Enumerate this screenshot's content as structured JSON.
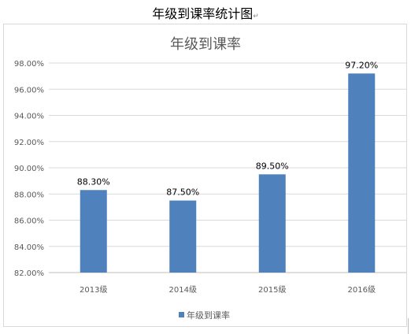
{
  "document": {
    "heading": "年级到课率统计图",
    "paragraph_mark": "↵"
  },
  "chart_data": {
    "type": "bar",
    "title": "年级到课率",
    "xlabel": "",
    "ylabel": "",
    "categories": [
      "2013级",
      "2014级",
      "2015级",
      "2016级"
    ],
    "series": [
      {
        "name": "年级到课率",
        "values": [
          88.3,
          87.5,
          89.5,
          97.2
        ],
        "color": "#4f81bd"
      }
    ],
    "data_labels": [
      "88.30%",
      "87.50%",
      "89.50%",
      "97.20%"
    ],
    "ylim": [
      82,
      98
    ],
    "y_ticks": [
      82,
      84,
      86,
      88,
      90,
      92,
      94,
      96,
      98
    ],
    "y_tick_labels": [
      "82.00%",
      "84.00%",
      "86.00%",
      "88.00%",
      "90.00%",
      "92.00%",
      "94.00%",
      "96.00%",
      "98.00%"
    ],
    "grid": true,
    "legend_position": "bottom"
  }
}
